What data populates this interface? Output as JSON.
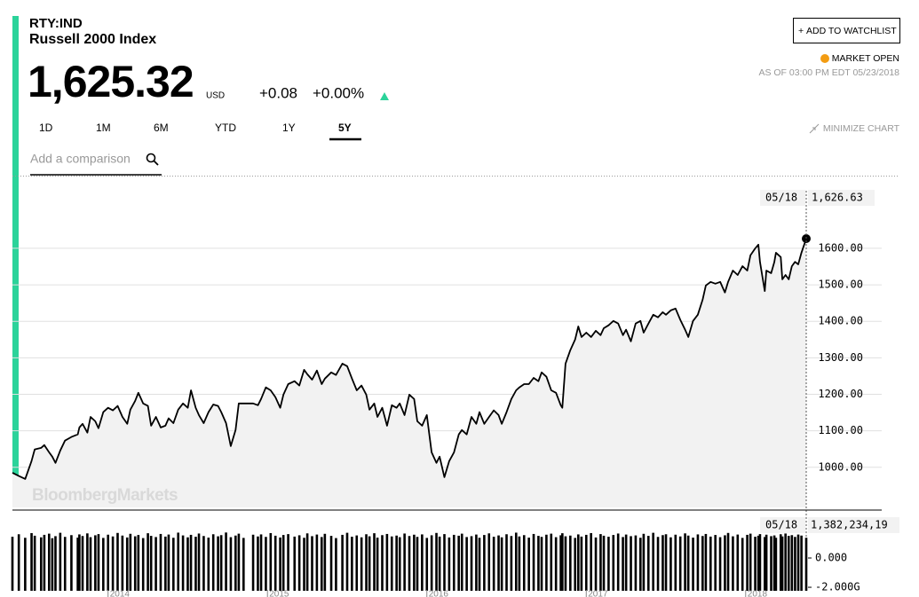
{
  "header": {
    "ticker": "RTY:IND",
    "name": "Russell 2000 Index",
    "price": "1,625.32",
    "currency": "USD",
    "change": "+0.08",
    "change_pct": "+0.00%",
    "watchlist": "ADD TO WATCHLIST",
    "status": "MARKET OPEN",
    "as_of": "AS OF 03:00 PM EDT 05/23/2018"
  },
  "ranges": [
    "1D",
    "1M",
    "6M",
    "YTD",
    "1Y",
    "5Y"
  ],
  "active_range": "5Y",
  "minimize": "MINIMIZE CHART",
  "search_placeholder": "Add a comparison",
  "watermark": "BloombergMarkets",
  "crosshair": {
    "date": "05/18",
    "price_label": "1,626.63",
    "volume_label": "1,382,234,19"
  },
  "chart_data": {
    "type": "line",
    "x": [
      2013.4,
      2013.44,
      2013.48,
      2013.52,
      2013.54,
      2013.58,
      2013.6,
      2013.63,
      2013.65,
      2013.67,
      2013.7,
      2013.73,
      2013.77,
      2013.81,
      2013.82,
      2013.84,
      2013.87,
      2013.89,
      2013.92,
      2013.94,
      2013.97,
      2014.0,
      2014.03,
      2014.06,
      2014.09,
      2014.12,
      2014.14,
      2014.17,
      2014.19,
      2014.22,
      2014.25,
      2014.27,
      2014.3,
      2014.33,
      2014.36,
      2014.38,
      2014.41,
      2014.44,
      2014.47,
      2014.5,
      2014.52,
      2014.55,
      2014.57,
      2014.6,
      2014.63,
      2014.66,
      2014.69,
      2014.71,
      2014.74,
      2014.77,
      2014.8,
      2014.82,
      2014.85,
      2014.91,
      2014.94,
      2014.96,
      2014.99,
      2015.02,
      2015.05,
      2015.08,
      2015.1,
      2015.13,
      2015.17,
      2015.2,
      2015.23,
      2015.25,
      2015.28,
      2015.31,
      2015.34,
      2015.36,
      2015.4,
      2015.43,
      2015.47,
      2015.5,
      2015.53,
      2015.56,
      2015.59,
      2015.62,
      2015.64,
      2015.67,
      2015.69,
      2015.72,
      2015.75,
      2015.78,
      2015.81,
      2015.83,
      2015.86,
      2015.89,
      2015.92,
      2015.94,
      2015.97,
      2016.0,
      2016.03,
      2016.06,
      2016.08,
      2016.11,
      2016.14,
      2016.17,
      2016.2,
      2016.22,
      2016.25,
      2016.28,
      2016.31,
      2016.33,
      2016.36,
      2016.39,
      2016.42,
      2016.45,
      2016.47,
      2016.5,
      2016.53,
      2016.56,
      2016.58,
      2016.61,
      2016.64,
      2016.67,
      2016.7,
      2016.72,
      2016.75,
      2016.78,
      2016.81,
      2016.84,
      2016.85,
      2016.87,
      2016.9,
      2016.93,
      2016.95,
      2016.97,
      2017.0,
      2017.03,
      2017.06,
      2017.09,
      2017.11,
      2017.14,
      2017.17,
      2017.2,
      2017.23,
      2017.25,
      2017.28,
      2017.31,
      2017.34,
      2017.36,
      2017.39,
      2017.42,
      2017.45,
      2017.48,
      2017.5,
      2017.53,
      2017.56,
      2017.59,
      2017.62,
      2017.64,
      2017.67,
      2017.7,
      2017.73,
      2017.75,
      2017.78,
      2017.81,
      2017.84,
      2017.87,
      2017.89,
      2017.92,
      2017.95,
      2017.98,
      2018.01,
      2018.03,
      2018.06,
      2018.08,
      2018.09,
      2018.12,
      2018.13,
      2018.16,
      2018.18,
      2018.19,
      2018.22,
      2018.23,
      2018.25,
      2018.27,
      2018.29,
      2018.31,
      2018.33,
      2018.35,
      2018.38
    ],
    "series": [
      {
        "name": "Russell 2000 Index",
        "color": "#000000",
        "values": [
          985,
          976,
          968,
          1017,
          1049,
          1053,
          1061,
          1041,
          1029,
          1012,
          1046,
          1073,
          1083,
          1090,
          1109,
          1119,
          1095,
          1138,
          1126,
          1107,
          1151,
          1163,
          1156,
          1168,
          1138,
          1119,
          1158,
          1182,
          1204,
          1175,
          1168,
          1114,
          1138,
          1109,
          1114,
          1134,
          1121,
          1158,
          1175,
          1163,
          1211,
          1163,
          1143,
          1121,
          1151,
          1172,
          1168,
          1151,
          1121,
          1058,
          1102,
          1175,
          1175,
          1175,
          1170,
          1187,
          1219,
          1211,
          1192,
          1163,
          1199,
          1228,
          1236,
          1224,
          1267,
          1255,
          1240,
          1265,
          1228,
          1243,
          1260,
          1253,
          1284,
          1277,
          1243,
          1211,
          1224,
          1199,
          1158,
          1175,
          1138,
          1163,
          1114,
          1170,
          1163,
          1175,
          1143,
          1199,
          1187,
          1126,
          1114,
          1143,
          1041,
          1012,
          1029,
          973,
          1017,
          1041,
          1090,
          1102,
          1090,
          1138,
          1119,
          1151,
          1119,
          1138,
          1156,
          1143,
          1119,
          1151,
          1187,
          1211,
          1219,
          1228,
          1228,
          1245,
          1236,
          1260,
          1248,
          1211,
          1204,
          1170,
          1163,
          1284,
          1321,
          1350,
          1386,
          1357,
          1369,
          1357,
          1374,
          1362,
          1381,
          1389,
          1401,
          1394,
          1362,
          1377,
          1345,
          1394,
          1401,
          1369,
          1394,
          1418,
          1411,
          1425,
          1418,
          1430,
          1435,
          1404,
          1377,
          1357,
          1401,
          1418,
          1459,
          1498,
          1508,
          1503,
          1508,
          1479,
          1508,
          1539,
          1527,
          1551,
          1539,
          1581,
          1600,
          1610,
          1563,
          1483,
          1539,
          1532,
          1563,
          1588,
          1576,
          1515,
          1527,
          1515,
          1551,
          1563,
          1556,
          1588,
          1626.63
        ]
      }
    ],
    "xlim": [
      2013.4,
      2018.38
    ],
    "xticks": [
      2014,
      2015,
      2016,
      2017,
      2018
    ],
    "ylim": [
      890,
      1770
    ],
    "yticks": [
      {
        "value": 1000,
        "label": "1000.00"
      },
      {
        "value": 1100,
        "label": "1100.00"
      },
      {
        "value": 1200,
        "label": "1200.00"
      },
      {
        "value": 1300,
        "label": "1300.00"
      },
      {
        "value": 1400,
        "label": "1400.00"
      },
      {
        "value": 1500,
        "label": "1500.00"
      },
      {
        "value": 1600,
        "label": "1600.00"
      }
    ],
    "grid": true,
    "fill_color": "#f2f2f2",
    "volume": {
      "type": "bar",
      "color": "#000000",
      "ylim": [
        -2.24,
        3.09
      ],
      "yticks": [
        {
          "value": 0,
          "label": "0.000"
        },
        {
          "value": -2,
          "label": "-2.000G"
        }
      ],
      "values": [
        1.45,
        1.62,
        1.38,
        1.7,
        1.52,
        1.41,
        1.58,
        1.66,
        1.35,
        1.49,
        1.72,
        1.44,
        1.56,
        1.39,
        1.61,
        1.5,
        1.68,
        1.42,
        1.55,
        1.63,
        1.37,
        1.59,
        1.47,
        1.71,
        1.53,
        1.4,
        1.65,
        1.48,
        1.57,
        1.36,
        1.69,
        1.51,
        1.43,
        1.64,
        1.46,
        1.6,
        1.38,
        1.73,
        1.54,
        1.41,
        1.58,
        1.45,
        1.67,
        1.5,
        1.39,
        1.62,
        1.48,
        1.56,
        1.74,
        1.42,
        1.53,
        1.66,
        1.37,
        1.59,
        1.47,
        1.61,
        1.44,
        1.7,
        1.52,
        1.4,
        1.57,
        1.63,
        1.46,
        1.55,
        1.38,
        1.68,
        1.49,
        1.6,
        1.43,
        1.65,
        1.51,
        1.36,
        1.58,
        1.72,
        1.45,
        1.54,
        1.41,
        1.62,
        1.48,
        1.69,
        1.39,
        1.56,
        1.64,
        1.47,
        1.53,
        1.42,
        1.67,
        1.5,
        1.59,
        1.44,
        1.61,
        1.37,
        1.55,
        1.71,
        1.46,
        1.63,
        1.4,
        1.58,
        1.52,
        1.66,
        1.43,
        1.49,
        1.6,
        1.38,
        1.57,
        1.68,
        1.45,
        1.54,
        1.41,
        1.62,
        1.5,
        1.73,
        1.47,
        1.56,
        1.39,
        1.64,
        1.51,
        1.44,
        1.59,
        1.66,
        1.42,
        1.55,
        1.69,
        1.48,
        1.53,
        1.37,
        1.61,
        1.46,
        1.58,
        1.7,
        1.4,
        1.63,
        1.52,
        1.45,
        1.57,
        1.67,
        1.43,
        1.6,
        1.49,
        1.54,
        1.38,
        1.65,
        1.51,
        1.72,
        1.44,
        1.56,
        1.62,
        1.41,
        1.59,
        1.47,
        1.68,
        1.53,
        1.39,
        1.61,
        1.5,
        1.64,
        1.46,
        1.57,
        1.42,
        1.55,
        1.71,
        1.48,
        1.6,
        1.37,
        1.58,
        1.66,
        1.45,
        1.52,
        1.63,
        1.43,
        1.59,
        1.49,
        1.54,
        1.38,
        1.62,
        1.47,
        1.67,
        1.51,
        1.56,
        1.44,
        1.6,
        1.53,
        1.38223419
      ]
    }
  }
}
